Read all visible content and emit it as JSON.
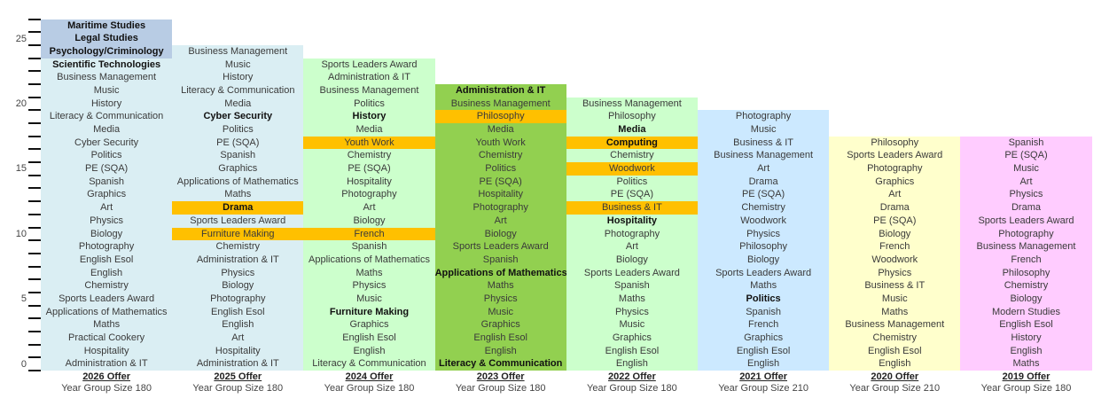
{
  "chart_data": {
    "type": "table",
    "title": "",
    "ylabel": "",
    "ylim": [
      0,
      26
    ],
    "yticks": [
      "0",
      "5",
      "10",
      "15",
      "20",
      "25"
    ],
    "colors": {
      "orange": "#ffc000",
      "header_blue": "#b8cce4"
    },
    "columns": [
      {
        "title": "2026 Offer",
        "subtitle": "Year Group Size 180",
        "bg": "#daeef3",
        "items": [
          {
            "t": "Maritime Studies",
            "b": 1,
            "bg": "#b8cce4"
          },
          {
            "t": "Legal Studies",
            "b": 1,
            "bg": "#b8cce4"
          },
          {
            "t": "Psychology/Criminology",
            "b": 1,
            "bg": "#b8cce4"
          },
          {
            "t": "Scientific Technologies",
            "b": 1
          },
          {
            "t": "Business Management"
          },
          {
            "t": "Music"
          },
          {
            "t": "History"
          },
          {
            "t": "Literacy & Communication"
          },
          {
            "t": "Media"
          },
          {
            "t": "Cyber Security"
          },
          {
            "t": "Politics"
          },
          {
            "t": "PE (SQA)"
          },
          {
            "t": "Spanish"
          },
          {
            "t": "Graphics"
          },
          {
            "t": "Art"
          },
          {
            "t": "Physics"
          },
          {
            "t": "Biology"
          },
          {
            "t": "Photography"
          },
          {
            "t": "English Esol"
          },
          {
            "t": "English"
          },
          {
            "t": "Chemistry"
          },
          {
            "t": "Sports Leaders Award"
          },
          {
            "t": "Applications of Mathematics"
          },
          {
            "t": "Maths"
          },
          {
            "t": "Practical Cookery"
          },
          {
            "t": "Hospitality"
          },
          {
            "t": "Administration & IT"
          }
        ]
      },
      {
        "title": "2025 Offer",
        "subtitle": "Year Group Size 180",
        "bg": "#daeef3",
        "items": [
          {
            "t": "Business Management"
          },
          {
            "t": "Music"
          },
          {
            "t": "History"
          },
          {
            "t": "Literacy & Communication"
          },
          {
            "t": "Media"
          },
          {
            "t": "Cyber Security",
            "b": 1
          },
          {
            "t": "Politics"
          },
          {
            "t": "PE (SQA)"
          },
          {
            "t": "Spanish"
          },
          {
            "t": "Graphics"
          },
          {
            "t": "Applications of Mathematics"
          },
          {
            "t": "Maths"
          },
          {
            "t": "Drama",
            "b": 1,
            "bg": "#ffc000"
          },
          {
            "t": "Sports Leaders Award"
          },
          {
            "t": "Furniture Making",
            "bg": "#ffc000"
          },
          {
            "t": "Chemistry"
          },
          {
            "t": "Administration & IT"
          },
          {
            "t": "Physics"
          },
          {
            "t": "Biology"
          },
          {
            "t": "Photography"
          },
          {
            "t": "English Esol"
          },
          {
            "t": "English"
          },
          {
            "t": "Art"
          },
          {
            "t": "Hospitality"
          },
          {
            "t": "Administration & IT"
          }
        ]
      },
      {
        "title": "2024 Offer",
        "subtitle": "Year Group Size 180",
        "bg": "#ccffcc",
        "items": [
          {
            "t": "Sports Leaders Award"
          },
          {
            "t": "Administration & IT"
          },
          {
            "t": "Business Management"
          },
          {
            "t": "Politics"
          },
          {
            "t": "History",
            "b": 1
          },
          {
            "t": "Media"
          },
          {
            "t": "Youth Work",
            "bg": "#ffc000"
          },
          {
            "t": "Chemistry"
          },
          {
            "t": "PE (SQA)"
          },
          {
            "t": "Hospitality"
          },
          {
            "t": "Photography"
          },
          {
            "t": "Art"
          },
          {
            "t": "Biology"
          },
          {
            "t": "French",
            "bg": "#ffc000"
          },
          {
            "t": "Spanish"
          },
          {
            "t": "Applications of Mathematics"
          },
          {
            "t": "Maths"
          },
          {
            "t": "Physics"
          },
          {
            "t": "Music"
          },
          {
            "t": "Furniture Making",
            "b": 1
          },
          {
            "t": "Graphics"
          },
          {
            "t": "English Esol"
          },
          {
            "t": "English"
          },
          {
            "t": "Literacy & Communication"
          }
        ]
      },
      {
        "title": "2023 Offer",
        "subtitle": "Year Group Size 180",
        "bg": "#92d050",
        "items": [
          {
            "t": "Administration & IT",
            "b": 1
          },
          {
            "t": "Business Management"
          },
          {
            "t": "Philosophy",
            "bg": "#ffc000"
          },
          {
            "t": "Media"
          },
          {
            "t": "Youth Work"
          },
          {
            "t": "Chemistry"
          },
          {
            "t": "Politics"
          },
          {
            "t": "PE (SQA)"
          },
          {
            "t": "Hospitality"
          },
          {
            "t": "Photography"
          },
          {
            "t": "Art"
          },
          {
            "t": "Biology"
          },
          {
            "t": "Sports Leaders Award"
          },
          {
            "t": "Spanish"
          },
          {
            "t": "Applications of Mathematics",
            "b": 1
          },
          {
            "t": "Maths"
          },
          {
            "t": "Physics"
          },
          {
            "t": "Music"
          },
          {
            "t": "Graphics"
          },
          {
            "t": "English Esol"
          },
          {
            "t": "English"
          },
          {
            "t": "Literacy & Communication",
            "b": 1
          }
        ]
      },
      {
        "title": "2022 Offer",
        "subtitle": "Year Group Size 180",
        "bg": "#ccffcc",
        "items": [
          {
            "t": "Business Management"
          },
          {
            "t": "Philosophy"
          },
          {
            "t": "Media",
            "b": 1
          },
          {
            "t": "Computing",
            "b": 1,
            "bg": "#ffc000"
          },
          {
            "t": "Chemistry"
          },
          {
            "t": "Woodwork",
            "bg": "#ffc000"
          },
          {
            "t": "Politics"
          },
          {
            "t": "PE (SQA)"
          },
          {
            "t": "Business & IT",
            "bg": "#ffc000"
          },
          {
            "t": "Hospitality",
            "b": 1
          },
          {
            "t": "Photography"
          },
          {
            "t": "Art"
          },
          {
            "t": "Biology"
          },
          {
            "t": "Sports Leaders Award"
          },
          {
            "t": "Spanish"
          },
          {
            "t": "Maths"
          },
          {
            "t": "Physics"
          },
          {
            "t": "Music"
          },
          {
            "t": "Graphics"
          },
          {
            "t": "English Esol"
          },
          {
            "t": "English"
          }
        ]
      },
      {
        "title": "2021 Offer",
        "subtitle": "Year Group Size 210",
        "bg": "#cce9ff",
        "items": [
          {
            "t": "Photography"
          },
          {
            "t": "Music"
          },
          {
            "t": "Business & IT"
          },
          {
            "t": "Business Management"
          },
          {
            "t": "Art"
          },
          {
            "t": "Drama"
          },
          {
            "t": "PE (SQA)"
          },
          {
            "t": "Chemistry"
          },
          {
            "t": "Woodwork"
          },
          {
            "t": "Physics"
          },
          {
            "t": "Philosophy"
          },
          {
            "t": "Biology"
          },
          {
            "t": "Sports Leaders Award"
          },
          {
            "t": "Maths"
          },
          {
            "t": "Politics",
            "b": 1
          },
          {
            "t": "Spanish"
          },
          {
            "t": "French"
          },
          {
            "t": "Graphics"
          },
          {
            "t": "English Esol"
          },
          {
            "t": "English"
          }
        ]
      },
      {
        "title": "2020 Offer",
        "subtitle": "Year Group Size 210",
        "bg": "#ffffcc",
        "items": [
          {
            "t": "Philosophy"
          },
          {
            "t": "Sports Leaders Award"
          },
          {
            "t": "Photography"
          },
          {
            "t": "Graphics"
          },
          {
            "t": "Art"
          },
          {
            "t": "Drama"
          },
          {
            "t": "PE (SQA)"
          },
          {
            "t": "Biology"
          },
          {
            "t": "French"
          },
          {
            "t": "Woodwork"
          },
          {
            "t": "Physics"
          },
          {
            "t": "Business & IT"
          },
          {
            "t": "Music"
          },
          {
            "t": "Maths"
          },
          {
            "t": "Business Management"
          },
          {
            "t": "Chemistry"
          },
          {
            "t": "English Esol"
          },
          {
            "t": "English"
          }
        ]
      },
      {
        "title": "2019 Offer",
        "subtitle": "Year Group Size 180",
        "bg": "#ffccff",
        "items": [
          {
            "t": "Spanish"
          },
          {
            "t": "PE (SQA)"
          },
          {
            "t": "Music"
          },
          {
            "t": "Art"
          },
          {
            "t": "Physics"
          },
          {
            "t": "Drama"
          },
          {
            "t": "Sports Leaders Award"
          },
          {
            "t": "Photography"
          },
          {
            "t": "Business Management"
          },
          {
            "t": "French"
          },
          {
            "t": "Philosophy"
          },
          {
            "t": "Chemistry"
          },
          {
            "t": "Biology"
          },
          {
            "t": "Modern Studies"
          },
          {
            "t": "English Esol"
          },
          {
            "t": "History"
          },
          {
            "t": "English"
          },
          {
            "t": "Maths"
          }
        ]
      }
    ]
  }
}
